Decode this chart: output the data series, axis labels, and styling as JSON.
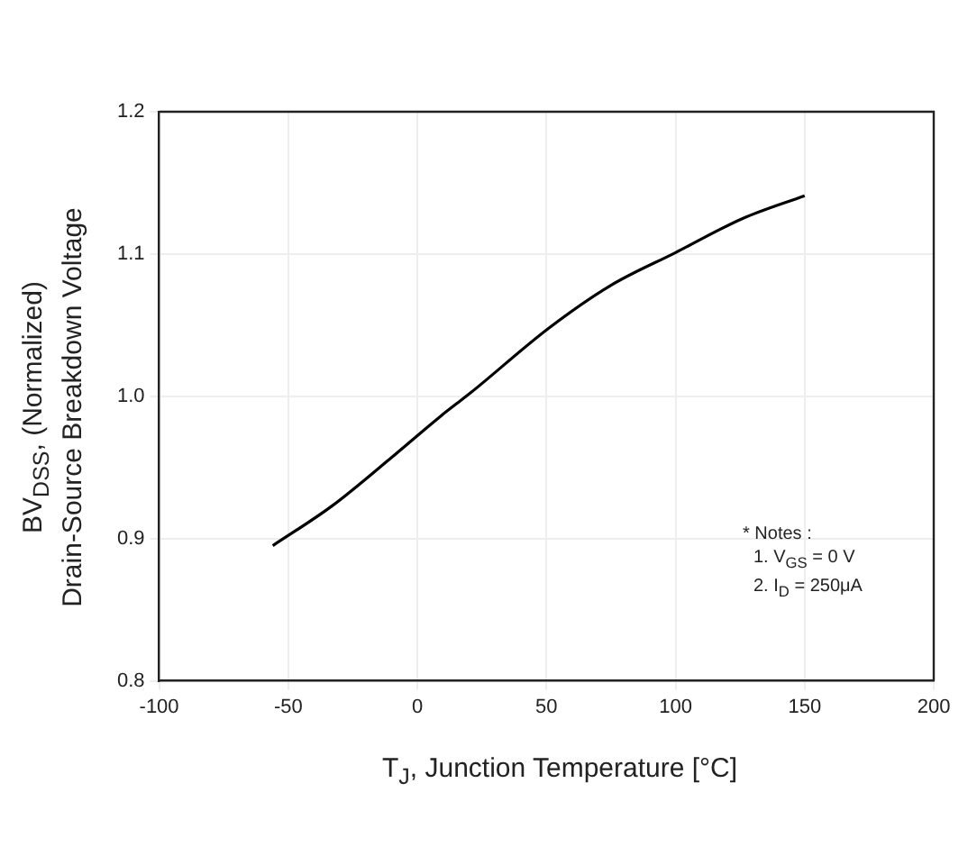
{
  "chart_data": {
    "type": "line",
    "xlabel": "T$_{J}$, Junction Temperature [°C]",
    "ylabel": "BV$_{DSS}$, (Normalized)\nDrain-Source Breakdown Voltage",
    "annotations": [
      "* Notes :",
      "1. V$_{GS}$ = 0 V",
      "2. I$_{D}$ = 250μA"
    ],
    "x": [
      -56,
      -33,
      -10,
      9,
      21,
      51,
      75,
      100,
      126,
      150
    ],
    "values": [
      0.895,
      0.923,
      0.957,
      0.986,
      1.003,
      1.048,
      1.078,
      1.101,
      1.125,
      1.141
    ],
    "color": "#000000",
    "xlim": [
      -100,
      200
    ],
    "xticks": [
      -100,
      -50,
      0,
      50,
      100,
      150,
      200
    ],
    "ylim": [
      0.8,
      1.2
    ],
    "yticks": [
      0.8,
      0.9,
      {
        "value": 1,
        "label": "1.0"
      },
      1.1,
      1.2
    ],
    "grid": true
  }
}
